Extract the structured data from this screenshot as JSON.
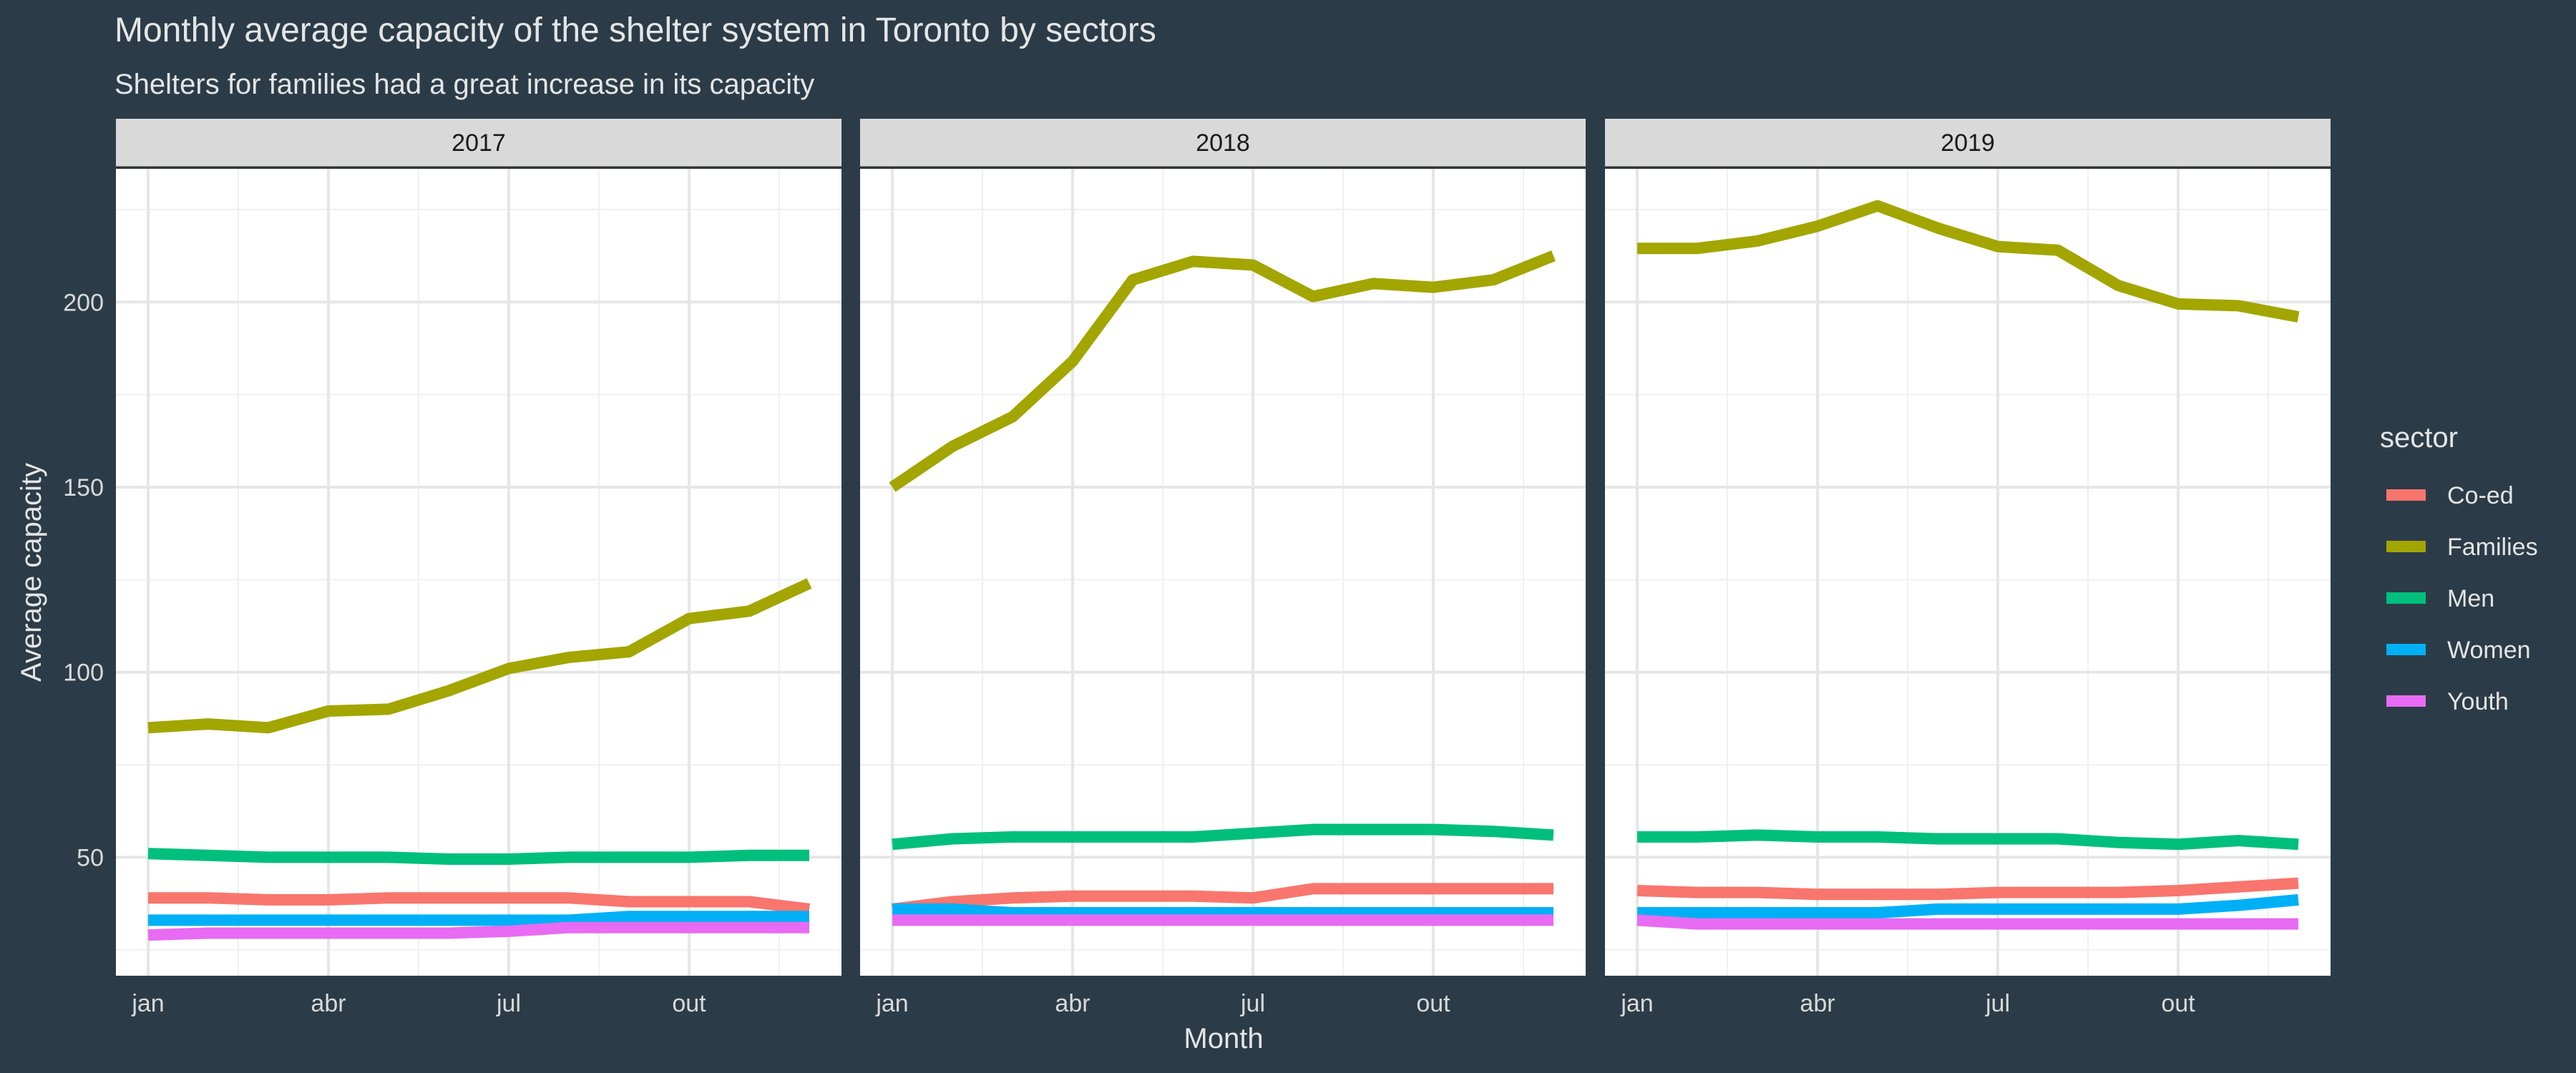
{
  "chart_data": {
    "type": "line",
    "title": "Monthly average capacity of the shelter system in Toronto by sectors",
    "subtitle": "Shelters for families had a great increase in its capacity",
    "xlabel": "Month",
    "ylabel": "Average capacity",
    "ylim": [
      18,
      236
    ],
    "yticks": [
      50,
      100,
      150,
      200
    ],
    "xticks": [
      {
        "month": 1,
        "label": "jan"
      },
      {
        "month": 4,
        "label": "abr"
      },
      {
        "month": 7,
        "label": "jul"
      },
      {
        "month": 10,
        "label": "out"
      }
    ],
    "months": [
      1,
      2,
      3,
      4,
      5,
      6,
      7,
      8,
      9,
      10,
      11,
      12
    ],
    "grid": true,
    "legend": {
      "title": "sector",
      "position": "right"
    },
    "colors": {
      "Co-ed": "#f8766d",
      "Families": "#a3a500",
      "Men": "#00bf7d",
      "Women": "#00b0f6",
      "Youth": "#e76bf3"
    },
    "series_order": [
      "Co-ed",
      "Families",
      "Men",
      "Women",
      "Youth"
    ],
    "panels": [
      {
        "label": "2017",
        "series": [
          {
            "name": "Families",
            "values": [
              85,
              86,
              85,
              89.5,
              90,
              95,
              101,
              104,
              105.5,
              114.5,
              116.5,
              124
            ]
          },
          {
            "name": "Men",
            "values": [
              51,
              50.5,
              50,
              50,
              50,
              49.5,
              49.5,
              50,
              50,
              50,
              50.5,
              50.5
            ]
          },
          {
            "name": "Co-ed",
            "values": [
              39,
              39,
              38.5,
              38.5,
              39,
              39,
              39,
              39,
              38,
              38,
              38,
              36
            ]
          },
          {
            "name": "Women",
            "values": [
              33,
              33,
              33,
              33,
              33,
              33,
              33,
              33,
              34,
              34,
              34,
              34
            ]
          },
          {
            "name": "Youth",
            "values": [
              29,
              29.5,
              29.5,
              29.5,
              29.5,
              29.5,
              30,
              31,
              31,
              31,
              31,
              31
            ]
          }
        ]
      },
      {
        "label": "2018",
        "series": [
          {
            "name": "Families",
            "values": [
              150,
              161,
              169,
              184,
              206,
              211,
              210,
              201.5,
              205,
              204,
              206,
              212.5
            ]
          },
          {
            "name": "Men",
            "values": [
              53.5,
              55,
              55.5,
              55.5,
              55.5,
              55.5,
              56.5,
              57.5,
              57.5,
              57.5,
              57,
              56
            ]
          },
          {
            "name": "Co-ed",
            "values": [
              36,
              38,
              39,
              39.5,
              39.5,
              39.5,
              39,
              41.5,
              41.5,
              41.5,
              41.5,
              41.5
            ]
          },
          {
            "name": "Women",
            "values": [
              36,
              36,
              35,
              35,
              35,
              35,
              35,
              35,
              35,
              35,
              35,
              35
            ]
          },
          {
            "name": "Youth",
            "values": [
              33,
              33,
              33,
              33,
              33,
              33,
              33,
              33,
              33,
              33,
              33,
              33
            ]
          }
        ]
      },
      {
        "label": "2019",
        "series": [
          {
            "name": "Families",
            "values": [
              214.5,
              214.5,
              216.5,
              220.5,
              226,
              220,
              215,
              214,
              204.5,
              199.5,
              199,
              196
            ]
          },
          {
            "name": "Men",
            "values": [
              55.5,
              55.5,
              56,
              55.5,
              55.5,
              55,
              55,
              55,
              54,
              53.5,
              54.5,
              53.5
            ]
          },
          {
            "name": "Co-ed",
            "values": [
              41,
              40.5,
              40.5,
              40,
              40,
              40,
              40.5,
              40.5,
              40.5,
              41,
              42,
              43
            ]
          },
          {
            "name": "Women",
            "values": [
              35,
              35,
              35,
              35,
              35,
              36,
              36,
              36,
              36,
              36,
              37,
              38.5
            ]
          },
          {
            "name": "Youth",
            "values": [
              33,
              32,
              32,
              32,
              32,
              32,
              32,
              32,
              32,
              32,
              32,
              32
            ]
          }
        ]
      }
    ]
  }
}
